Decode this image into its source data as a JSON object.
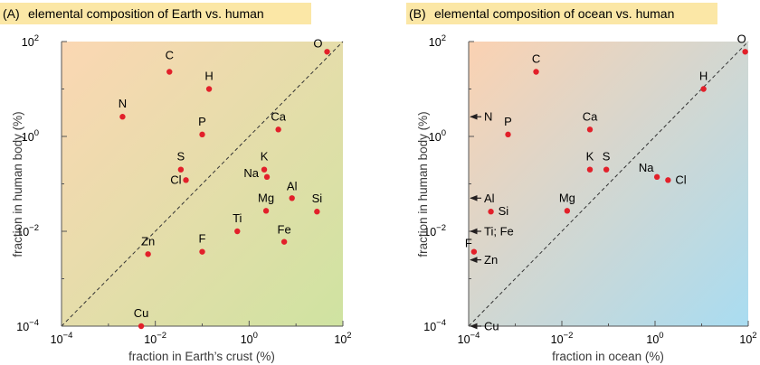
{
  "panels": [
    {
      "tag": "(A)",
      "title": "elemental composition of Earth vs. human",
      "xlabel": "fraction in Earth’s crust (%)",
      "ylabel": "fraction in human body (%)",
      "bg": [
        "#fbd7b3",
        "#cfe3a1"
      ]
    },
    {
      "tag": "(B)",
      "title": "elemental composition of ocean vs. human",
      "xlabel": "fraction in ocean (%)",
      "ylabel": "fraction in human body (%)",
      "bg": [
        "#fbd2b2",
        "#a9dcf1"
      ]
    }
  ],
  "colors": {
    "point": "#e2202a",
    "title_bg": "#fbe7a6",
    "diagonal": "#333333"
  },
  "chart_data": [
    {
      "type": "scatter",
      "title": "elemental composition of Earth vs. human",
      "xlabel": "fraction in Earth’s crust (%)",
      "ylabel": "fraction in human body (%)",
      "xscale": "log",
      "yscale": "log",
      "xlim": [
        0.0001,
        100
      ],
      "ylim": [
        0.0001,
        100
      ],
      "xticks": [
        "10^-4",
        "10^-2",
        "10^0",
        "10^2"
      ],
      "yticks": [
        "10^-4",
        "10^-2",
        "10^0",
        "10^2"
      ],
      "reference_line": "y = x (dashed)",
      "points": [
        {
          "label": "O",
          "x": 46,
          "y": 61
        },
        {
          "label": "C",
          "x": 0.02,
          "y": 23
        },
        {
          "label": "H",
          "x": 0.14,
          "y": 10
        },
        {
          "label": "N",
          "x": 0.002,
          "y": 2.6
        },
        {
          "label": "P",
          "x": 0.1,
          "y": 1.1
        },
        {
          "label": "Ca",
          "x": 4.2,
          "y": 1.4
        },
        {
          "label": "K",
          "x": 2.1,
          "y": 0.2
        },
        {
          "label": "Na",
          "x": 2.4,
          "y": 0.14
        },
        {
          "label": "S",
          "x": 0.035,
          "y": 0.2
        },
        {
          "label": "Cl",
          "x": 0.045,
          "y": 0.12
        },
        {
          "label": "Al",
          "x": 8.2,
          "y": 0.05
        },
        {
          "label": "Si",
          "x": 28,
          "y": 0.026
        },
        {
          "label": "Mg",
          "x": 2.3,
          "y": 0.027
        },
        {
          "label": "Ti",
          "x": 0.56,
          "y": 0.01
        },
        {
          "label": "Fe",
          "x": 5.6,
          "y": 0.006
        },
        {
          "label": "F",
          "x": 0.1,
          "y": 0.0037
        },
        {
          "label": "Zn",
          "x": 0.007,
          "y": 0.0033
        },
        {
          "label": "Cu",
          "x": 0.005,
          "y": 0.0001
        }
      ]
    },
    {
      "type": "scatter",
      "title": "elemental composition of ocean vs. human",
      "xlabel": "fraction in ocean (%)",
      "ylabel": "fraction in human body (%)",
      "xscale": "log",
      "yscale": "log",
      "xlim": [
        0.0001,
        100
      ],
      "ylim": [
        0.0001,
        100
      ],
      "xticks": [
        "10^-4",
        "10^-2",
        "10^0",
        "10^2"
      ],
      "yticks": [
        "10^-4",
        "10^-2",
        "10^0",
        "10^2"
      ],
      "reference_line": "y = x (dashed)",
      "points": [
        {
          "label": "O",
          "x": 86,
          "y": 61
        },
        {
          "label": "C",
          "x": 0.0028,
          "y": 23
        },
        {
          "label": "H",
          "x": 11,
          "y": 10
        },
        {
          "label": "P",
          "x": 0.0007,
          "y": 1.1
        },
        {
          "label": "Ca",
          "x": 0.04,
          "y": 1.4
        },
        {
          "label": "K",
          "x": 0.04,
          "y": 0.2
        },
        {
          "label": "S",
          "x": 0.09,
          "y": 0.2
        },
        {
          "label": "Na",
          "x": 1.1,
          "y": 0.14
        },
        {
          "label": "Cl",
          "x": 1.9,
          "y": 0.12
        },
        {
          "label": "Si",
          "x": 0.0003,
          "y": 0.026
        },
        {
          "label": "Mg",
          "x": 0.013,
          "y": 0.027
        },
        {
          "label": "F",
          "x": 0.00013,
          "y": 0.0037
        }
      ],
      "axis_markers": [
        {
          "label": "N",
          "y": 2.6
        },
        {
          "label": "Al",
          "y": 0.05
        },
        {
          "label": "Ti; Fe",
          "y": 0.01
        },
        {
          "label": "Zn",
          "y": 0.0025
        },
        {
          "label": "Cu",
          "y": 0.0001
        }
      ]
    }
  ]
}
